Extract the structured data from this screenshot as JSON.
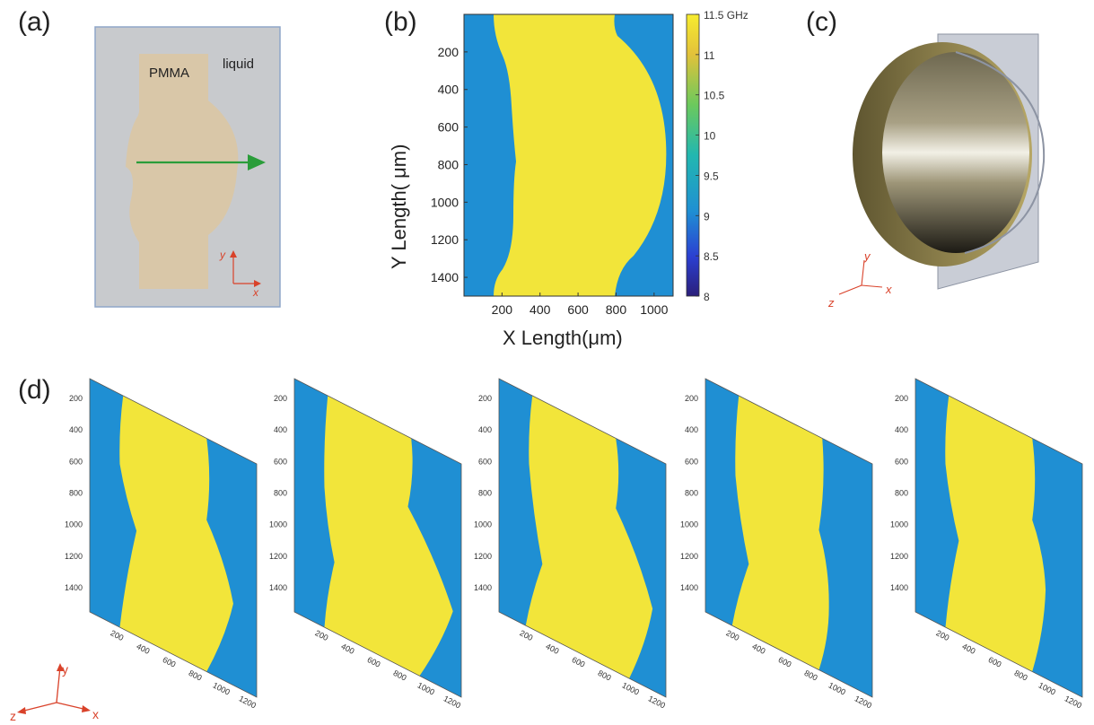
{
  "panels": {
    "a": {
      "label": "(a)",
      "material_label": "PMMA",
      "medium_label": "liquid",
      "axis_y": "y",
      "axis_x": "x"
    },
    "b": {
      "label": "(b)",
      "xlabel": "X Length(μm)",
      "ylabel": "Y Length( μm)",
      "colorbar_label": "GHz"
    },
    "c": {
      "label": "(c)",
      "axis_y": "y",
      "axis_x": "x",
      "axis_z": "z"
    },
    "d": {
      "label": "(d)",
      "axis_y": "y",
      "axis_x": "x",
      "axis_z": "z",
      "y_ticks": [
        "200",
        "400",
        "600",
        "800",
        "1000",
        "1200",
        "1400"
      ],
      "x_ticks": [
        "200",
        "400",
        "600",
        "800",
        "1000",
        "1200"
      ]
    }
  },
  "colors": {
    "liquid_bg": "#c8cacd",
    "pmma": "#d9c7a8",
    "arrow": "#2a9d3a",
    "map_high": "#f2e53a",
    "map_low": "#1f8fd3",
    "axis_red": "#d9422a"
  },
  "chart_data": {
    "type": "heatmap",
    "xlabel": "X Length(μm)",
    "ylabel": "Y Length( μm)",
    "x_ticks": [
      200,
      400,
      600,
      800,
      1000
    ],
    "y_ticks": [
      200,
      400,
      600,
      800,
      1000,
      1200,
      1400
    ],
    "xlim": [
      0,
      1100
    ],
    "ylim": [
      1500,
      0
    ],
    "colorbar": {
      "ticks": [
        "11.5 GHz",
        "11",
        "10.5",
        "10",
        "9.5",
        "9",
        "8.5",
        "8"
      ],
      "range": [
        8,
        11.5
      ],
      "unit": "GHz"
    },
    "regions": [
      {
        "value_ghz": 11.2
      },
      {
        "value_ghz": 9.0
      }
    ]
  }
}
